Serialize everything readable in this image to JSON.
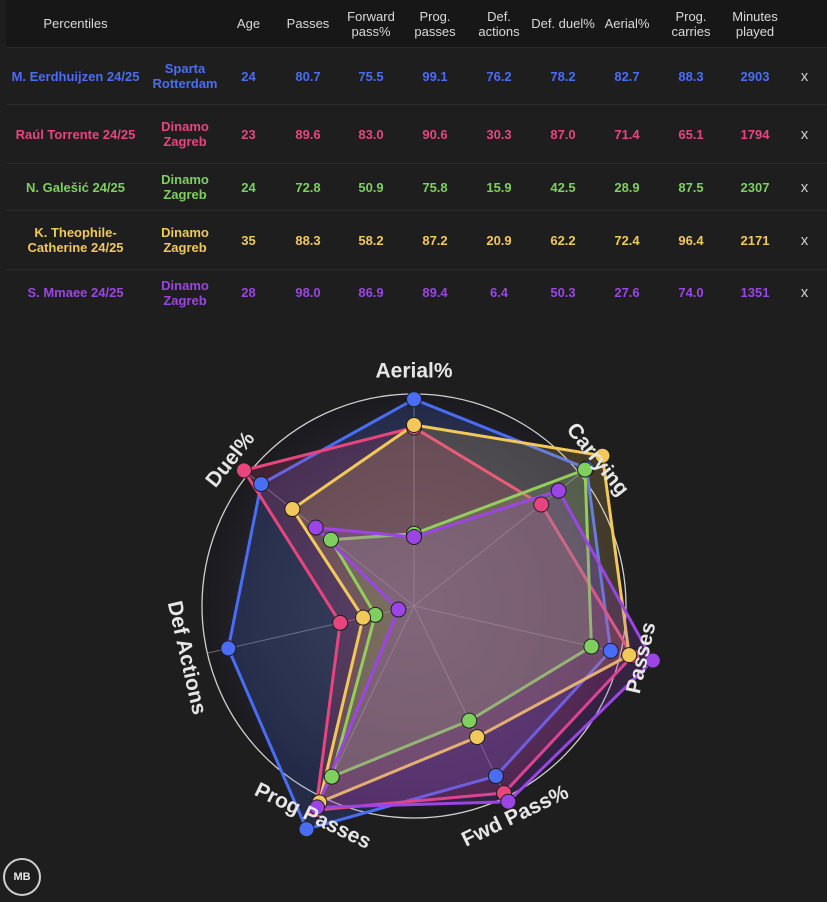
{
  "table": {
    "headers": [
      "Percentiles",
      "",
      "Age",
      "Passes",
      "Forward pass%",
      "Prog. passes",
      "Def. actions",
      "Def. duel%",
      "Aerial%",
      "Prog. carries",
      "Minutes played",
      ""
    ],
    "rows": [
      {
        "player": "M. Eerdhuijzen 24/25",
        "team": "Sparta Rotterdam",
        "age": "24",
        "passes": "80.7",
        "fwd": "75.5",
        "prog": "99.1",
        "def": "76.2",
        "duel": "78.2",
        "aerial": "82.7",
        "carries": "88.3",
        "minutes": "2903",
        "remove": "x",
        "color": "#4a6df5"
      },
      {
        "player": "Raúl Torrente 24/25",
        "team": "Dinamo Zagreb",
        "age": "23",
        "passes": "89.6",
        "fwd": "83.0",
        "prog": "90.6",
        "def": "30.3",
        "duel": "87.0",
        "aerial": "71.4",
        "carries": "65.1",
        "minutes": "1794",
        "remove": "x",
        "color": "#e8457f"
      },
      {
        "player": "N. Galešić 24/25",
        "team": "Dinamo Zagreb",
        "age": "24",
        "passes": "72.8",
        "fwd": "50.9",
        "prog": "75.8",
        "def": "15.9",
        "duel": "42.5",
        "aerial": "28.9",
        "carries": "87.5",
        "minutes": "2307",
        "remove": "x",
        "color": "#7fcf5f"
      },
      {
        "player": "K. Theophile-Catherine 24/25",
        "team": "Dinamo Zagreb",
        "age": "35",
        "passes": "88.3",
        "fwd": "58.2",
        "prog": "87.2",
        "def": "20.9",
        "duel": "62.2",
        "aerial": "72.4",
        "carries": "96.4",
        "minutes": "2171",
        "remove": "x",
        "color": "#f2c85b"
      },
      {
        "player": "S. Mmaee 24/25",
        "team": "Dinamo Zagreb",
        "age": "28",
        "passes": "98.0",
        "fwd": "86.9",
        "prog": "89.4",
        "def": "6.4",
        "duel": "50.3",
        "aerial": "27.6",
        "carries": "74.0",
        "minutes": "1351",
        "remove": "x",
        "color": "#9b45e4"
      }
    ]
  },
  "chart_data": {
    "type": "radar",
    "axes": [
      "Aerial%",
      "Carrying",
      "Passes",
      "Fwd Pass%",
      "Prog Passes",
      "Def Actions",
      "Duel%"
    ],
    "range": [
      0,
      100
    ],
    "series": [
      {
        "name": "M. Eerdhuijzen 24/25",
        "color": "#4a6df5",
        "values": [
          82.7,
          88.3,
          80.7,
          75.5,
          99.1,
          76.2,
          78.2
        ]
      },
      {
        "name": "Raúl Torrente 24/25",
        "color": "#e8457f",
        "values": [
          71.4,
          65.1,
          89.6,
          83.0,
          90.6,
          30.3,
          87.0
        ]
      },
      {
        "name": "N. Galešić 24/25",
        "color": "#7fcf5f",
        "values": [
          28.9,
          87.5,
          72.8,
          50.9,
          75.8,
          15.9,
          42.5
        ]
      },
      {
        "name": "K. Theophile-Catherine 24/25",
        "color": "#f2c85b",
        "values": [
          72.4,
          96.4,
          88.3,
          58.2,
          87.2,
          20.9,
          62.2
        ]
      },
      {
        "name": "S. Mmaee 24/25",
        "color": "#9b45e4",
        "values": [
          27.6,
          74.0,
          98.0,
          86.9,
          89.4,
          6.4,
          50.3
        ]
      }
    ]
  },
  "logo": {
    "text": "MB"
  }
}
